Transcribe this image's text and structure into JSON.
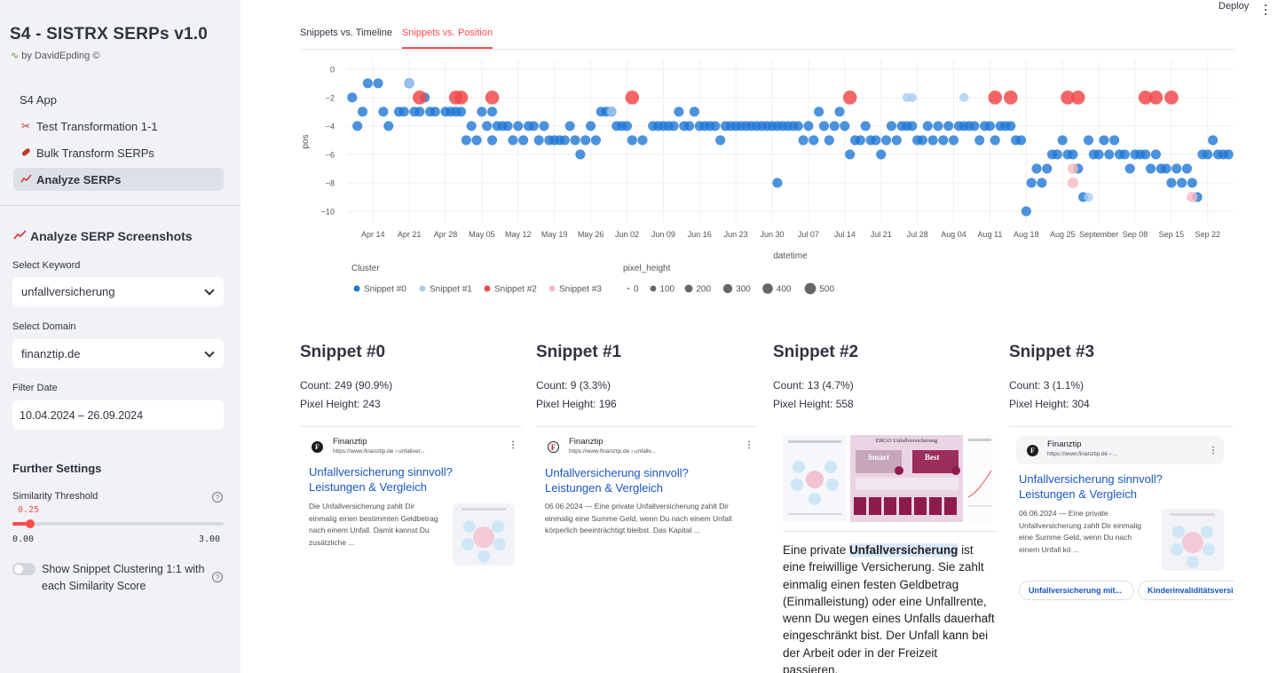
{
  "sidebar": {
    "title": "S4 - SISTRX SERPs v1.0",
    "byline": "by DavidEpding ©",
    "nav": [
      {
        "label": "S4 App",
        "icon": ""
      },
      {
        "label": "Test Transformation 1-1",
        "icon": "scissors-icon"
      },
      {
        "label": "Bulk Transform SERPs",
        "icon": "pill-icon"
      },
      {
        "label": "Analyze SERPs",
        "icon": "chart-icon"
      }
    ],
    "section_title": "Analyze SERP Screenshots",
    "keyword_label": "Select Keyword",
    "keyword_value": "unfallversicherung",
    "domain_label": "Select Domain",
    "domain_value": "finanztip.de",
    "date_label": "Filter Date",
    "date_value": "10.04.2024 – 26.09.2024",
    "further_settings": "Further Settings",
    "threshold_label": "Similarity Threshold",
    "threshold_value": "0.25",
    "threshold_min": "0.00",
    "threshold_max": "3.00",
    "toggle_label": "Show Snippet Clustering 1:1 with each Similarity Score"
  },
  "header": {
    "deploy": "Deploy"
  },
  "tabs": [
    {
      "label": "Snippets vs. Timeline",
      "active": false
    },
    {
      "label": "Snippets vs. Position",
      "active": true
    }
  ],
  "chart_data": {
    "type": "scatter",
    "xlabel": "datetime",
    "ylabel": "pos",
    "ylim": [
      -10.5,
      0.3
    ],
    "yticks": [
      "0",
      "−2",
      "−4",
      "−6",
      "−8",
      "−10"
    ],
    "xticks": [
      "Apr 14",
      "Apr 21",
      "Apr 28",
      "May 05",
      "May 12",
      "May 19",
      "May 26",
      "Jun 02",
      "Jun 09",
      "Jun 16",
      "Jun 23",
      "Jun 30",
      "Jul 07",
      "Jul 14",
      "Jul 21",
      "Jul 28",
      "Aug 04",
      "Aug 11",
      "Aug 18",
      "Aug 25",
      "September",
      "Sep 08",
      "Sep 15",
      "Sep 22"
    ],
    "xtick_days": [
      14,
      21,
      28,
      35,
      42,
      49,
      56,
      63,
      70,
      77,
      84,
      91,
      98,
      105,
      112,
      119,
      126,
      133,
      140,
      147,
      154,
      161,
      168,
      175
    ],
    "x_units": "day of 2024 counted from Apr 1",
    "xlim": [
      9,
      180
    ],
    "legend": {
      "cluster_title": "Cluster",
      "size_title": "pixel_height",
      "size_labels": [
        "0",
        "100",
        "200",
        "300",
        "400",
        "500"
      ]
    },
    "series": [
      {
        "name": "Snippet #0",
        "color": "#1f77d4",
        "size": 243,
        "points": [
          [
            10,
            -2
          ],
          [
            11,
            -4
          ],
          [
            12,
            -3
          ],
          [
            13,
            -1
          ],
          [
            15,
            -1
          ],
          [
            16,
            -3
          ],
          [
            17,
            -4
          ],
          [
            19,
            -3
          ],
          [
            20,
            -3
          ],
          [
            21,
            -1
          ],
          [
            22,
            -3
          ],
          [
            23,
            -3
          ],
          [
            24,
            -2
          ],
          [
            25,
            -3
          ],
          [
            26,
            -3
          ],
          [
            28,
            -3
          ],
          [
            29,
            -3
          ],
          [
            30,
            -3
          ],
          [
            31,
            -3
          ],
          [
            32,
            -5
          ],
          [
            33,
            -4
          ],
          [
            34,
            -5
          ],
          [
            35,
            -3
          ],
          [
            36,
            -4
          ],
          [
            37,
            -5
          ],
          [
            37,
            -3
          ],
          [
            38,
            -4
          ],
          [
            39,
            -4
          ],
          [
            40,
            -4
          ],
          [
            41,
            -5
          ],
          [
            42,
            -4
          ],
          [
            43,
            -5
          ],
          [
            44,
            -4
          ],
          [
            45,
            -4
          ],
          [
            46,
            -5
          ],
          [
            47,
            -4
          ],
          [
            48,
            -5
          ],
          [
            49,
            -5
          ],
          [
            50,
            -5
          ],
          [
            51,
            -5
          ],
          [
            52,
            -4
          ],
          [
            53,
            -5
          ],
          [
            54,
            -6
          ],
          [
            55,
            -5
          ],
          [
            56,
            -4
          ],
          [
            57,
            -5
          ],
          [
            58,
            -3
          ],
          [
            59,
            -3
          ],
          [
            60,
            -3
          ],
          [
            61,
            -4
          ],
          [
            62,
            -4
          ],
          [
            63,
            -4
          ],
          [
            64,
            -5
          ],
          [
            66,
            -5
          ],
          [
            68,
            -4
          ],
          [
            69,
            -4
          ],
          [
            70,
            -4
          ],
          [
            71,
            -4
          ],
          [
            72,
            -4
          ],
          [
            73,
            -3
          ],
          [
            74,
            -4
          ],
          [
            75,
            -4
          ],
          [
            76,
            -3
          ],
          [
            77,
            -4
          ],
          [
            78,
            -4
          ],
          [
            79,
            -4
          ],
          [
            80,
            -4
          ],
          [
            81,
            -5
          ],
          [
            82,
            -4
          ],
          [
            83,
            -4
          ],
          [
            84,
            -4
          ],
          [
            85,
            -4
          ],
          [
            86,
            -4
          ],
          [
            87,
            -4
          ],
          [
            88,
            -4
          ],
          [
            89,
            -4
          ],
          [
            90,
            -4
          ],
          [
            91,
            -4
          ],
          [
            92,
            -4
          ],
          [
            92,
            -8
          ],
          [
            93,
            -4
          ],
          [
            94,
            -4
          ],
          [
            95,
            -4
          ],
          [
            96,
            -4
          ],
          [
            97,
            -5
          ],
          [
            98,
            -4
          ],
          [
            99,
            -5
          ],
          [
            100,
            -3
          ],
          [
            101,
            -4
          ],
          [
            102,
            -5
          ],
          [
            103,
            -4
          ],
          [
            104,
            -3
          ],
          [
            105,
            -4
          ],
          [
            106,
            -6
          ],
          [
            107,
            -5
          ],
          [
            108,
            -5
          ],
          [
            109,
            -4
          ],
          [
            110,
            -5
          ],
          [
            111,
            -5
          ],
          [
            112,
            -6
          ],
          [
            113,
            -5
          ],
          [
            114,
            -4
          ],
          [
            115,
            -5
          ],
          [
            116,
            -4
          ],
          [
            117,
            -4
          ],
          [
            118,
            -4
          ],
          [
            119,
            -5
          ],
          [
            120,
            -5
          ],
          [
            121,
            -4
          ],
          [
            122,
            -5
          ],
          [
            123,
            -4
          ],
          [
            124,
            -5
          ],
          [
            125,
            -4
          ],
          [
            126,
            -5
          ],
          [
            127,
            -4
          ],
          [
            128,
            -4
          ],
          [
            129,
            -4
          ],
          [
            130,
            -4
          ],
          [
            131,
            -5
          ],
          [
            132,
            -4
          ],
          [
            133,
            -4
          ],
          [
            134,
            -5
          ],
          [
            135,
            -4
          ],
          [
            136,
            -4
          ],
          [
            137,
            -4
          ],
          [
            138,
            -5
          ],
          [
            139,
            -5
          ],
          [
            140,
            -10
          ],
          [
            141,
            -8
          ],
          [
            142,
            -7
          ],
          [
            143,
            -8
          ],
          [
            144,
            -7
          ],
          [
            145,
            -6
          ],
          [
            146,
            -6
          ],
          [
            147,
            -5
          ],
          [
            148,
            -6
          ],
          [
            149,
            -6
          ],
          [
            150,
            -7
          ],
          [
            151,
            -9
          ],
          [
            152,
            -5
          ],
          [
            153,
            -6
          ],
          [
            154,
            -6
          ],
          [
            155,
            -5
          ],
          [
            156,
            -6
          ],
          [
            157,
            -5
          ],
          [
            158,
            -6
          ],
          [
            159,
            -6
          ],
          [
            160,
            -7
          ],
          [
            161,
            -6
          ],
          [
            162,
            -6
          ],
          [
            163,
            -6
          ],
          [
            164,
            -7
          ],
          [
            165,
            -6
          ],
          [
            166,
            -7
          ],
          [
            167,
            -7
          ],
          [
            168,
            -8
          ],
          [
            169,
            -7
          ],
          [
            170,
            -8
          ],
          [
            171,
            -7
          ],
          [
            172,
            -8
          ],
          [
            173,
            -9
          ],
          [
            174,
            -6
          ],
          [
            175,
            -6
          ],
          [
            176,
            -5
          ],
          [
            177,
            -6
          ],
          [
            178,
            -6
          ],
          [
            179,
            -6
          ]
        ]
      },
      {
        "name": "Snippet #1",
        "color": "#a8cdf0",
        "size": 196,
        "points": [
          [
            21,
            -1
          ],
          [
            60,
            -3
          ],
          [
            117,
            -2
          ],
          [
            118,
            -2
          ],
          [
            128,
            -2
          ],
          [
            152,
            -9
          ]
        ]
      },
      {
        "name": "Snippet #2",
        "color": "#f24b4b",
        "size": 558,
        "points": [
          [
            23,
            -2
          ],
          [
            30,
            -2
          ],
          [
            31,
            -2
          ],
          [
            37,
            -2
          ],
          [
            64,
            -2
          ],
          [
            106,
            -2
          ],
          [
            134,
            -2
          ],
          [
            137,
            -2
          ],
          [
            148,
            -2
          ],
          [
            150,
            -2
          ],
          [
            163,
            -2
          ],
          [
            165,
            -2
          ],
          [
            168,
            -2
          ]
        ]
      },
      {
        "name": "Snippet #3",
        "color": "#f8b9bf",
        "size": 304,
        "points": [
          [
            149,
            -7
          ],
          [
            149,
            -8
          ],
          [
            172,
            -9
          ]
        ]
      }
    ]
  },
  "snippets": [
    {
      "title": "Snippet #0",
      "count": "Count: 249 (90.9%)",
      "pixel": "Pixel Height: 243",
      "site": "Finanztip",
      "url": "https://www.finanztip.de › unfallver...",
      "serp_title": "Unfallversicherung sinnvoll? Leistungen & Vergleich",
      "desc": "Die Unfallversicherung zahlt Dir einmalig einen bestimmten Geldbetrag nach einem Unfall. Damit kannst Du zusätzliche ..."
    },
    {
      "title": "Snippet #1",
      "count": "Count: 9 (3.3%)",
      "pixel": "Pixel Height: 196",
      "site": "Finanztip",
      "url": "https://www.finanztip.de › unfallv...",
      "serp_title": "Unfallversicherung sinnvoll? Leistungen & Vergleich",
      "desc": "06.06.2024 — Eine private Unfallversicherung zahlt Dir einmalig eine Summe Geld, wenn Du nach einem Unfall körperlich beeinträchtigt bleibst. Das Kapital ..."
    },
    {
      "title": "Snippet #2",
      "count": "Count: 13 (4.7%)",
      "pixel": "Pixel Height: 558",
      "image_title": "ERGO Unfallversicherung",
      "image_smart": "Smart",
      "image_best": "Best",
      "desc_pre": "Eine private ",
      "desc_hl": "Unfallversicherung",
      "desc_post": " ist eine freiwillige Versicherung. Sie zahlt einmalig einen festen Geldbetrag (Einmalleistung) oder eine Unfallrente, wenn Du wegen eines Unfalls dauerhaft eingeschränkt bist. Der Unfall kann bei der Arbeit oder in der Freizeit passieren."
    },
    {
      "title": "Snippet #3",
      "count": "Count: 3 (1.1%)",
      "pixel": "Pixel Height: 304",
      "site": "Finanztip",
      "url": "https://www.finanztip.de › ...",
      "serp_title": "Unfallversicherung sinnvoll? Leistungen & Vergleich",
      "desc": "06.06.2024 — Eine private Unfallversicherung zahlt Dir einmalig eine Summe Geld, wenn Du nach einem Unfall kö ...",
      "chips": [
        "Unfallversicherung mit...",
        "Kinderinvaliditätsversi..."
      ]
    }
  ]
}
